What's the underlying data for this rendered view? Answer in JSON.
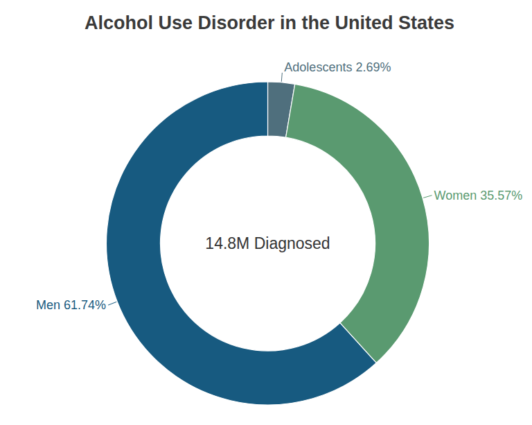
{
  "chart_data": {
    "type": "pie",
    "title": "Alcohol Use Disorder in the United States",
    "annotations": [
      "14.8M Diagnosed"
    ],
    "categories": [
      "Adolescents",
      "Women",
      "Men"
    ],
    "values": [
      2.69,
      35.57,
      61.74
    ],
    "value_labels": [
      "2.69%",
      "35.57%",
      "61.74%"
    ],
    "colors": [
      "#4f6f7d",
      "#5a9a70",
      "#175a80"
    ],
    "data_labels": true
  }
}
